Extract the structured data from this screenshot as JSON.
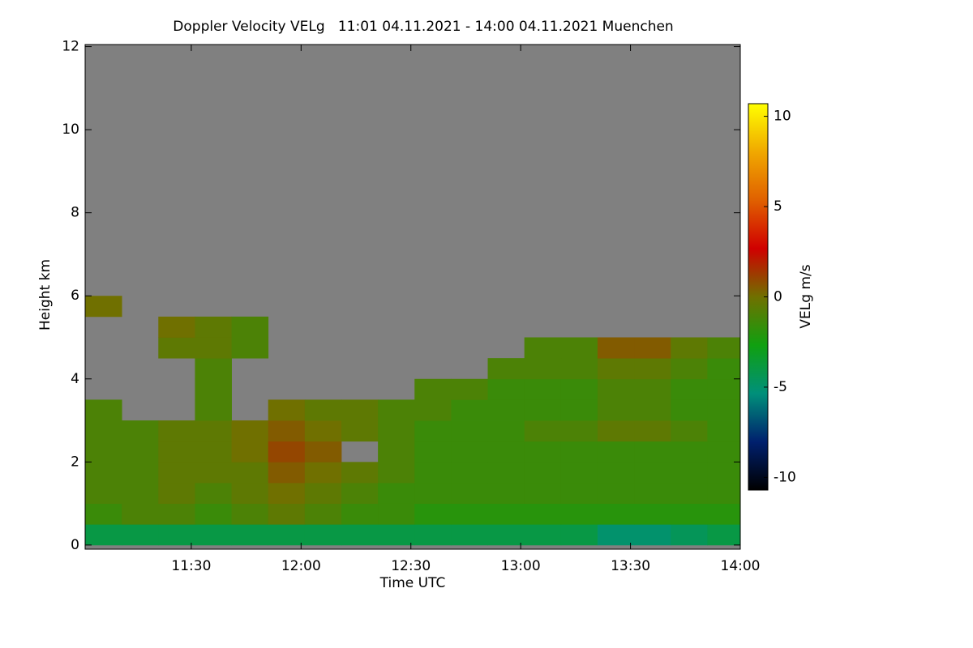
{
  "chart_data": {
    "type": "heatmap",
    "title": "Doppler Velocity VELg   11:01 04.11.2021 - 14:00 04.11.2021 Muenchen",
    "xlabel": "Time UTC",
    "ylabel": "Height km",
    "colorbar_label": "VELg m/s",
    "xlim": [
      661,
      840
    ],
    "xticks": [
      {
        "value": 690,
        "label": "11:30"
      },
      {
        "value": 720,
        "label": "12:00"
      },
      {
        "value": 750,
        "label": "12:30"
      },
      {
        "value": 780,
        "label": "13:00"
      },
      {
        "value": 810,
        "label": "13:30"
      },
      {
        "value": 840,
        "label": "14:00"
      }
    ],
    "ylim": [
      -0.1,
      12.05
    ],
    "yticks": [
      0,
      2,
      4,
      6,
      8,
      10,
      12
    ],
    "clim": [
      -10.7,
      10.7
    ],
    "cticks": [
      -10,
      -5,
      0,
      5,
      10
    ],
    "colorscale": [
      "#000000",
      "#00206e",
      "#00907a",
      "#10a010",
      "#707000",
      "#d00000",
      "#e06000",
      "#f0a800",
      "#ffff00"
    ],
    "background": "#808080",
    "x_bins": [
      661,
      671,
      681,
      691,
      701,
      711,
      721,
      731,
      741,
      751,
      761,
      771,
      781,
      791,
      801,
      811,
      821,
      831,
      840
    ],
    "y_bins": [
      0,
      0.5,
      1,
      1.5,
      2,
      2.5,
      3,
      3.5,
      4,
      4.5,
      5,
      5.5,
      6
    ],
    "values": [
      [
        -4,
        -4,
        -4,
        -4,
        -4,
        -4,
        -4,
        -4,
        -4,
        -4,
        -4,
        -4,
        -4,
        -4,
        -5,
        -5,
        -4.5,
        -4
      ],
      [
        -1.5,
        -1,
        -1,
        -1.5,
        -1,
        -0.5,
        -1,
        -1.5,
        -1.5,
        -2,
        -2,
        -2,
        -2,
        -2,
        -2,
        -2,
        -2,
        -2
      ],
      [
        -1,
        -1,
        -0.5,
        -1,
        -0.5,
        0,
        -0.5,
        -1,
        -1.5,
        -1.5,
        -1.5,
        -1.5,
        -1.5,
        -1.5,
        -1.5,
        -1.5,
        -1.5,
        -1.5
      ],
      [
        -1,
        -1,
        -0.5,
        -0.5,
        -0.5,
        0.5,
        0,
        -0.5,
        -1,
        -1.5,
        -1.5,
        -1.5,
        -1.5,
        -1.5,
        -1.5,
        -1.5,
        -1.5,
        -1.5
      ],
      [
        -1,
        -1,
        -0.5,
        -0.5,
        0,
        1,
        0.5,
        null,
        -1,
        -1.5,
        -1.5,
        -1.5,
        -1.5,
        -1.5,
        -1.5,
        -1.5,
        -1.5,
        -1.5
      ],
      [
        -1,
        -1,
        -0.5,
        -0.5,
        0,
        0.5,
        0,
        -0.5,
        -1,
        -1.5,
        -1.5,
        -1.5,
        -1,
        -1,
        -0.5,
        -0.5,
        -1,
        -1.5
      ],
      [
        -1,
        null,
        null,
        -1,
        null,
        0,
        -0.5,
        -0.5,
        -1,
        -1,
        -1.5,
        -1.5,
        -1.5,
        -1.5,
        -1,
        -1,
        -1.5,
        -1.5
      ],
      [
        null,
        null,
        null,
        -1,
        null,
        null,
        null,
        null,
        null,
        -1,
        -1,
        -1.5,
        -1.5,
        -1.5,
        -1,
        -1,
        -1.5,
        -1.5
      ],
      [
        null,
        null,
        null,
        -1,
        null,
        null,
        null,
        null,
        null,
        null,
        null,
        -1,
        -1,
        -1,
        -0.5,
        -0.5,
        -1,
        -1.5
      ],
      [
        null,
        null,
        -0.5,
        -0.5,
        -1,
        null,
        null,
        null,
        null,
        null,
        null,
        null,
        -1,
        -1,
        0.5,
        0.5,
        -0.5,
        -1
      ],
      [
        null,
        null,
        0,
        -0.5,
        -1,
        null,
        null,
        null,
        null,
        null,
        null,
        null,
        null,
        null,
        null,
        null,
        null,
        null
      ],
      [
        0,
        null,
        null,
        null,
        null,
        null,
        null,
        null,
        null,
        null,
        null,
        null,
        null,
        null,
        null,
        null,
        null,
        null
      ]
    ]
  }
}
